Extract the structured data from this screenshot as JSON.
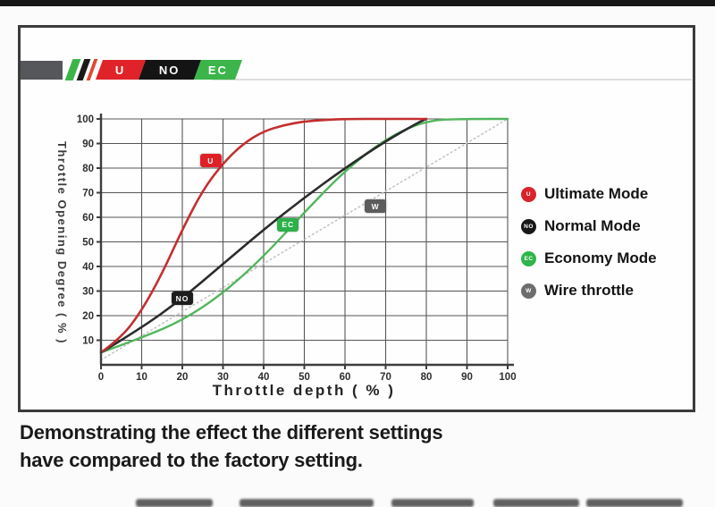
{
  "logo": {
    "lead_color": "#55575a",
    "stripes": [
      {
        "name": "green-stripe",
        "color": "#3bb54a"
      },
      {
        "name": "black-stripe",
        "color": "#1a1a1a"
      },
      {
        "name": "red-stripe",
        "color": "#e0492f"
      }
    ],
    "segments": [
      {
        "label": "U",
        "color": "#e02329"
      },
      {
        "label": "NO",
        "color": "#141414"
      },
      {
        "label": "EC",
        "color": "#3bb54a"
      }
    ]
  },
  "legend": {
    "items": [
      {
        "badge": "U",
        "label": "Ultimate Mode",
        "color": "#d8232a"
      },
      {
        "badge": "NO",
        "label": "Normal Mode",
        "color": "#171717"
      },
      {
        "badge": "EC",
        "label": "Economy Mode",
        "color": "#2fb54b"
      },
      {
        "badge": "W",
        "label": "Wire throttle",
        "color": "#6d6d6d"
      }
    ]
  },
  "chart_data": {
    "type": "line",
    "title": "",
    "xlabel": "Throttle depth ( % )",
    "ylabel": "Throttle Opening Degree ( % )",
    "xlim": [
      0,
      100
    ],
    "ylim": [
      0,
      100
    ],
    "xticks": [
      0,
      10,
      20,
      30,
      40,
      50,
      60,
      70,
      80,
      90,
      100
    ],
    "yticks": [
      10,
      20,
      30,
      40,
      50,
      60,
      70,
      80,
      90,
      100
    ],
    "grid": true,
    "legend_position": "right",
    "series": [
      {
        "name": "Wire throttle",
        "color": "#c4c4c4",
        "style": "dotted",
        "width": 1.6,
        "x": [
          0,
          100
        ],
        "y": [
          2,
          100
        ]
      },
      {
        "name": "Economy Mode",
        "color": "#52b65e",
        "style": "solid",
        "width": 2.4,
        "x": [
          0,
          10,
          20,
          30,
          40,
          50,
          60,
          70,
          80,
          90,
          100
        ],
        "y": [
          5,
          11,
          18,
          29,
          44,
          62,
          79,
          92,
          99.5,
          100,
          100
        ]
      },
      {
        "name": "Normal Mode",
        "color": "#2b2b2b",
        "style": "solid",
        "width": 2.6,
        "x": [
          0,
          10,
          20,
          30,
          40,
          50,
          60,
          70,
          78,
          80
        ],
        "y": [
          5,
          15,
          27,
          41,
          55,
          68,
          80,
          91,
          98.5,
          100
        ]
      },
      {
        "name": "Ultimate Mode",
        "color": "#c42e30",
        "style": "solid",
        "width": 2.6,
        "x": [
          0,
          5,
          10,
          15,
          20,
          25,
          30,
          35,
          40,
          45,
          50,
          55,
          60,
          70,
          80
        ],
        "y": [
          5,
          11,
          22,
          37,
          55,
          71,
          82,
          90,
          95,
          97.5,
          99,
          99.6,
          100,
          100,
          100
        ]
      }
    ],
    "markers": [
      {
        "label": "U",
        "x": 27,
        "y": 83,
        "bg": "#df2127"
      },
      {
        "label": "NO",
        "x": 20,
        "y": 27,
        "bg": "#1d1d1d"
      },
      {
        "label": "EC",
        "x": 46,
        "y": 57,
        "bg": "#2db04a"
      },
      {
        "label": "W",
        "x": 67.5,
        "y": 64.5,
        "bg": "#5c5c5c"
      }
    ]
  },
  "caption": {
    "line1": "Demonstrating the effect the different settings",
    "line2": "have compared to the factory setting."
  }
}
